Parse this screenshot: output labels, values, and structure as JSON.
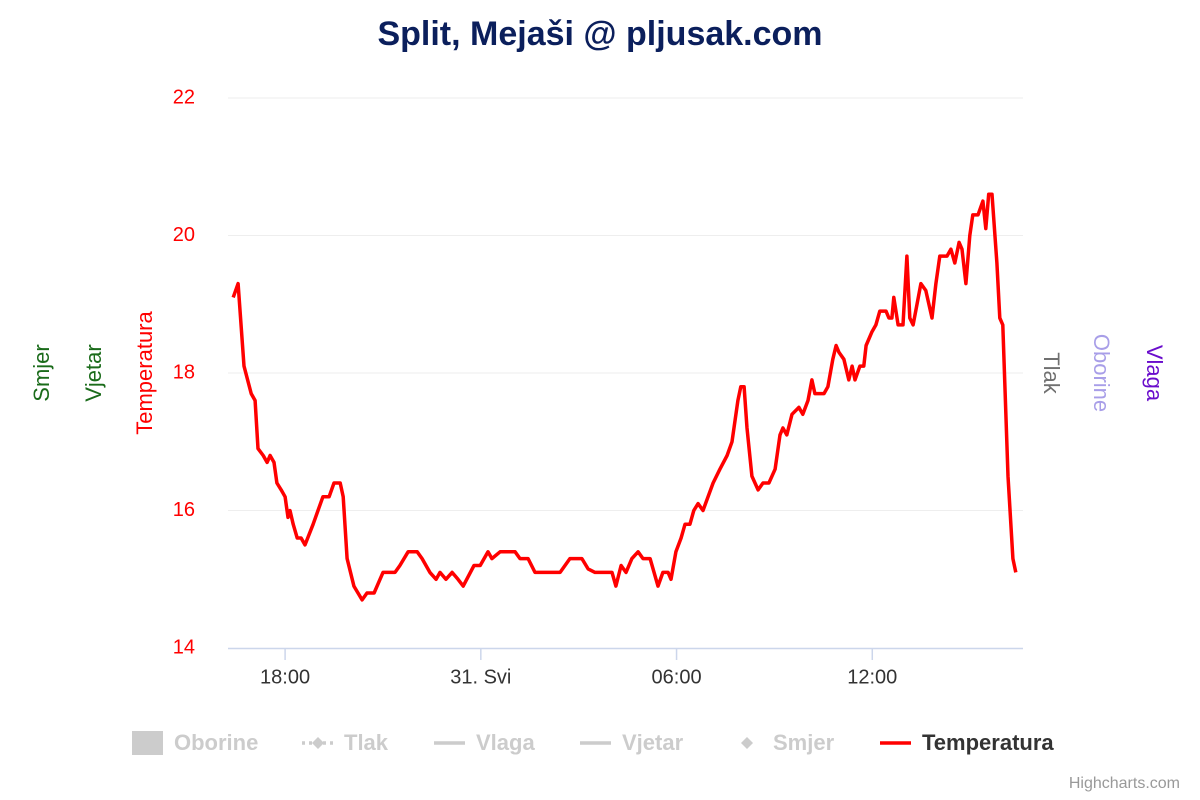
{
  "chart_data": {
    "type": "line",
    "title": "Split, Mejaši @ pljusak.com",
    "credits": "Highcharts.com",
    "xlim": [
      16.25,
      40.62
    ],
    "xticks": [
      {
        "value": 18,
        "label": "18:00"
      },
      {
        "value": 24,
        "label": "31. Svi"
      },
      {
        "value": 30,
        "label": "06:00"
      },
      {
        "value": 36,
        "label": "12:00"
      }
    ],
    "ylim": [
      14,
      22
    ],
    "yticks": [
      14,
      16,
      18,
      20,
      22
    ],
    "grid": true,
    "y_axis_titles": [
      {
        "text": "Smjer",
        "color": "#1a6b1a",
        "side": "left"
      },
      {
        "text": "Vjetar",
        "color": "#1a6b1a",
        "side": "left"
      },
      {
        "text": "Temperatura",
        "color": "#ff0000",
        "side": "left"
      },
      {
        "text": "Tlak",
        "color": "#707070",
        "side": "right"
      },
      {
        "text": "Oborine",
        "color": "#a89ee8",
        "side": "right"
      },
      {
        "text": "Vlaga",
        "color": "#6a0dcc",
        "side": "right"
      }
    ],
    "x": [
      16.41,
      16.56,
      16.74,
      16.96,
      17.08,
      17.17,
      17.33,
      17.45,
      17.54,
      17.66,
      17.75,
      17.88,
      18.0,
      18.09,
      18.15,
      18.25,
      18.37,
      18.49,
      18.61,
      18.86,
      19.01,
      19.16,
      19.35,
      19.5,
      19.69,
      19.78,
      19.9,
      20.11,
      20.36,
      20.51,
      20.73,
      21.0,
      21.37,
      21.52,
      21.77,
      22.05,
      22.2,
      22.44,
      22.63,
      22.75,
      22.93,
      23.12,
      23.3,
      23.46,
      23.79,
      23.98,
      24.22,
      24.34,
      24.59,
      25.05,
      25.2,
      25.45,
      25.66,
      26.43,
      26.73,
      27.1,
      27.29,
      27.5,
      28.02,
      28.14,
      28.3,
      28.45,
      28.63,
      28.82,
      28.97,
      29.19,
      29.43,
      29.58,
      29.74,
      29.83,
      29.98,
      30.14,
      30.26,
      30.41,
      30.53,
      30.66,
      30.81,
      31.12,
      31.33,
      31.55,
      31.7,
      31.88,
      31.97,
      32.07,
      32.16,
      32.31,
      32.5,
      32.65,
      32.83,
      33.02,
      33.17,
      33.26,
      33.38,
      33.54,
      33.75,
      33.87,
      34.03,
      34.15,
      34.24,
      34.52,
      34.64,
      34.79,
      34.89,
      34.98,
      35.13,
      35.28,
      35.38,
      35.47,
      35.62,
      35.74,
      35.81,
      35.99,
      36.11,
      36.23,
      36.42,
      36.51,
      36.6,
      36.66,
      36.79,
      36.94,
      37.06,
      37.15,
      37.25,
      37.37,
      37.49,
      37.64,
      37.83,
      37.95,
      38.07,
      38.29,
      38.41,
      38.53,
      38.66,
      38.75,
      38.87,
      38.99,
      39.08,
      39.24,
      39.39,
      39.48,
      39.57,
      39.67,
      39.82,
      39.91,
      40.0,
      40.16,
      40.31,
      40.4
    ],
    "series": [
      {
        "name": "Oborine",
        "symbol": "box",
        "visible": false
      },
      {
        "name": "Tlak",
        "symbol": "line-diamond",
        "visible": false
      },
      {
        "name": "Vlaga",
        "symbol": "line",
        "visible": false
      },
      {
        "name": "Vjetar",
        "symbol": "line",
        "visible": false
      },
      {
        "name": "Smjer",
        "symbol": "diamond",
        "visible": false
      },
      {
        "name": "Temperatura",
        "symbol": "line",
        "visible": true,
        "color": "#ff0000",
        "values": [
          19.1,
          19.3,
          18.1,
          17.7,
          17.6,
          16.9,
          16.8,
          16.7,
          16.8,
          16.7,
          16.4,
          16.3,
          16.2,
          15.9,
          16.0,
          15.8,
          15.6,
          15.6,
          15.5,
          15.8,
          16.0,
          16.2,
          16.2,
          16.4,
          16.4,
          16.2,
          15.3,
          14.9,
          14.7,
          14.8,
          14.8,
          15.1,
          15.1,
          15.2,
          15.4,
          15.4,
          15.3,
          15.1,
          15.0,
          15.1,
          15.0,
          15.1,
          15.0,
          14.9,
          15.2,
          15.2,
          15.4,
          15.3,
          15.4,
          15.4,
          15.3,
          15.3,
          15.1,
          15.1,
          15.3,
          15.3,
          15.15,
          15.1,
          15.1,
          14.9,
          15.2,
          15.1,
          15.3,
          15.4,
          15.3,
          15.3,
          14.9,
          15.1,
          15.1,
          15.0,
          15.4,
          15.6,
          15.8,
          15.8,
          16.0,
          16.1,
          16.0,
          16.4,
          16.6,
          16.8,
          17.0,
          17.6,
          17.8,
          17.8,
          17.2,
          16.5,
          16.3,
          16.4,
          16.4,
          16.6,
          17.1,
          17.2,
          17.1,
          17.4,
          17.5,
          17.4,
          17.6,
          17.9,
          17.7,
          17.7,
          17.8,
          18.2,
          18.4,
          18.3,
          18.2,
          17.9,
          18.1,
          17.9,
          18.1,
          18.1,
          18.4,
          18.6,
          18.7,
          18.9,
          18.9,
          18.8,
          18.8,
          19.1,
          18.7,
          18.7,
          19.7,
          18.8,
          18.7,
          19.0,
          19.3,
          19.2,
          18.8,
          19.3,
          19.7,
          19.7,
          19.8,
          19.6,
          19.9,
          19.8,
          19.3,
          20.0,
          20.3,
          20.3,
          20.5,
          20.1,
          20.6,
          20.6,
          19.6,
          18.8,
          18.7,
          16.5,
          15.3,
          15.1
        ]
      }
    ]
  }
}
